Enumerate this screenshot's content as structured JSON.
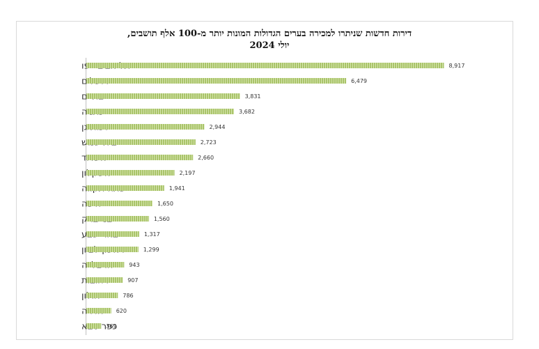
{
  "chart_data": {
    "type": "bar",
    "orientation": "horizontal",
    "title_lines": [
      "דירות חדשות שניתרו למכירה בערים הגדולות המונות יותר מ-100 אלף תושבים,",
      "יולי 2024"
    ],
    "categories": [
      "תל אביב -יפו",
      "ירושלים",
      "בת ים",
      "נתניה",
      "רמת גן",
      "בית שמש",
      "אשדוד",
      "אשקלון",
      "פתח תקווה",
      "חיפה",
      "בני ברק",
      "באר שבע",
      "ראשון לציון",
      "הרצלייה",
      "רחובות",
      "חולון",
      "חדרה",
      "כפר סבא"
    ],
    "values": [
      8917,
      6479,
      3831,
      3682,
      2944,
      2723,
      2660,
      2197,
      1941,
      1650,
      1560,
      1317,
      1299,
      943,
      907,
      786,
      620,
      369
    ],
    "value_labels": [
      "8,917",
      "6,479",
      "3,831",
      "3,682",
      "2,944",
      "2,723",
      "2,660",
      "2,197",
      "1,941",
      "1,650",
      "1,560",
      "1,317",
      "1,299",
      "943",
      "907",
      "786",
      "620",
      "369"
    ],
    "xlim": [
      0,
      9000
    ],
    "bar_color": "#a9c46a",
    "bar_stripe_color": "#d8e6b0",
    "grid": false,
    "legend": false
  }
}
